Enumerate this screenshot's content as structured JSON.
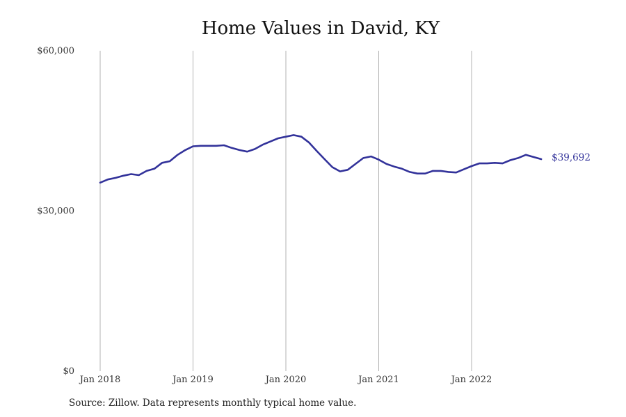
{
  "chart_data": {
    "type": "line",
    "title": "Home Values in David, KY",
    "xlabel": "",
    "ylabel": "",
    "x_tick_labels": [
      "Jan 2018",
      "Jan 2019",
      "Jan 2020",
      "Jan 2021",
      "Jan 2022"
    ],
    "y_tick_labels": [
      "$60,000",
      "$30,000",
      "$0"
    ],
    "y_ticks": [
      60000,
      30000,
      0
    ],
    "ylim": [
      0,
      60000
    ],
    "x_start": "2018-01",
    "grid": "vertical at each January",
    "line_color": "#32329a",
    "end_label": "$39,692",
    "series": [
      {
        "values": [
          35300,
          35900,
          36200,
          36600,
          36900,
          36700,
          37500,
          37900,
          39000,
          39300,
          40500,
          41400,
          42100,
          42200,
          42200,
          42200,
          42300,
          41800,
          41400,
          41100,
          41600,
          42400,
          43000,
          43600,
          43900,
          44200,
          43900,
          42800,
          41200,
          39700,
          38200,
          37400,
          37700,
          38800,
          39900,
          40200,
          39600,
          38800,
          38300,
          37900,
          37300,
          37000,
          37000,
          37500,
          37500,
          37300,
          37200,
          37800,
          38400,
          38900,
          38900,
          39000,
          38900,
          39500,
          39900,
          40500,
          40100,
          39692
        ]
      }
    ]
  },
  "source_text": "Source: Zillow. Data represents monthly typical home value."
}
